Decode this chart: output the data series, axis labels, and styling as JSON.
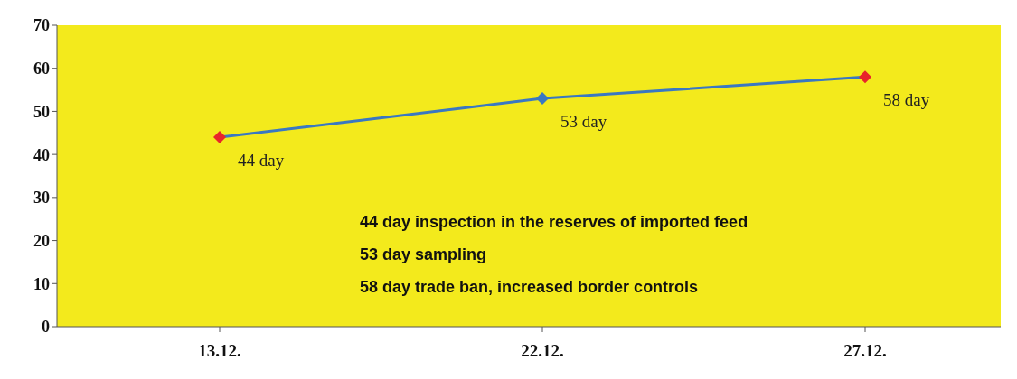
{
  "chart_data": {
    "type": "line",
    "categories": [
      "13.12.",
      "22.12.",
      "27.12."
    ],
    "values": [
      44,
      53,
      58
    ],
    "color": "#3a78c2",
    "colors": [
      "#e8262a",
      "#3a78c2",
      "#e8262a"
    ],
    "value_labels": [
      "44 day",
      "53 day",
      "58 day"
    ],
    "marker": "diamond",
    "line_style": "solid",
    "ylim": [
      0,
      70
    ],
    "yticks": [
      0,
      10,
      20,
      30,
      40,
      50,
      60,
      70
    ],
    "grid": false,
    "legend": false,
    "annotations": [
      "44 day inspection in the reserves of imported feed",
      "53 day sampling",
      "58 day trade ban, increased border controls"
    ]
  }
}
